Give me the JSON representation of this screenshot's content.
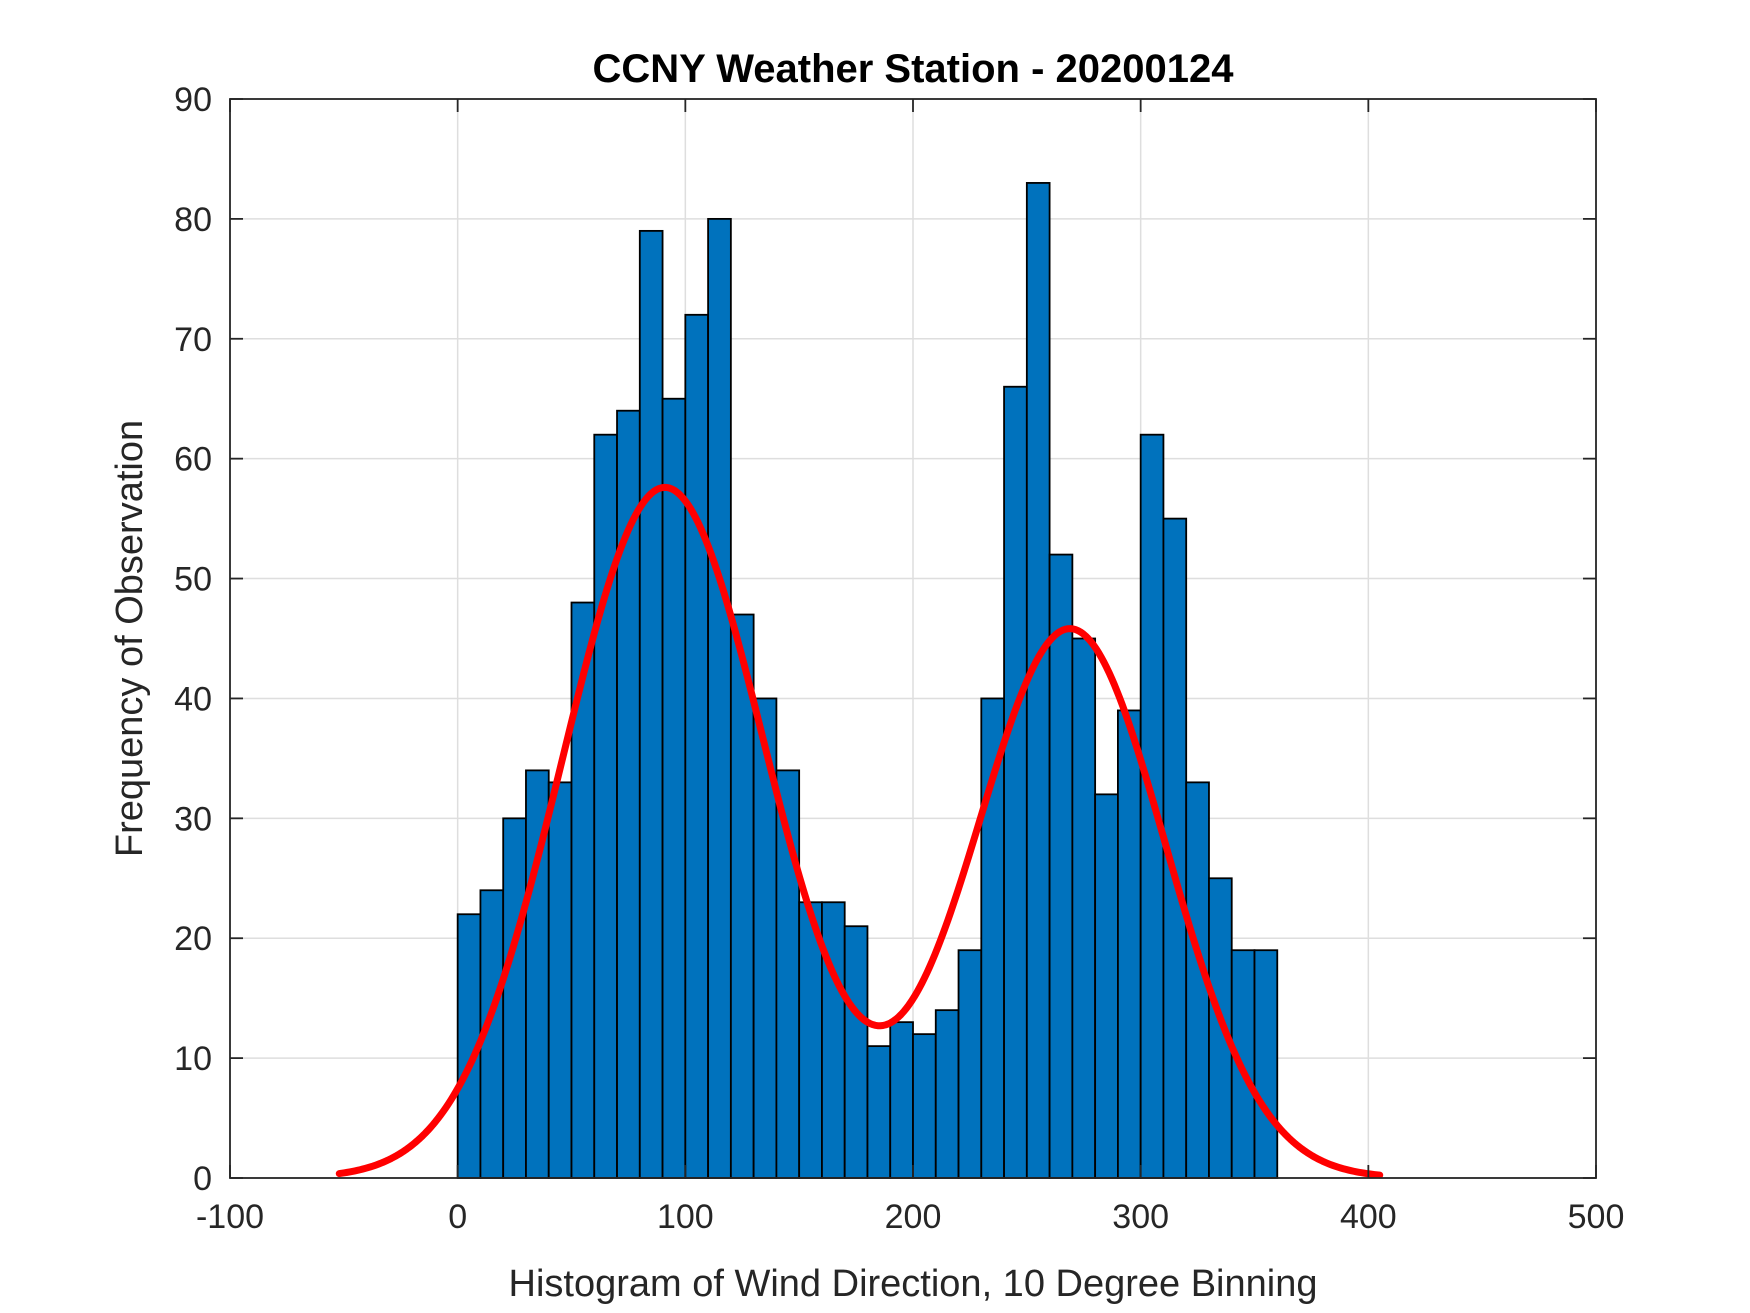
{
  "chart_data": {
    "type": "bar",
    "title": "CCNY Weather Station - 20200124",
    "xlabel": "Histogram of Wind Direction, 10 Degree Binning",
    "ylabel": "Frequency of Observation",
    "xlim": [
      -100,
      500
    ],
    "ylim": [
      0,
      90
    ],
    "xticks": [
      -100,
      0,
      100,
      200,
      300,
      400,
      500
    ],
    "yticks": [
      0,
      10,
      20,
      30,
      40,
      50,
      60,
      70,
      80,
      90
    ],
    "grid": true,
    "bin_width": 10,
    "bin_edges_start": 0,
    "values": [
      22,
      24,
      30,
      34,
      33,
      48,
      62,
      64,
      79,
      65,
      72,
      80,
      47,
      40,
      34,
      23,
      23,
      21,
      11,
      13,
      12,
      14,
      19,
      40,
      66,
      83,
      52,
      45,
      32,
      39,
      62,
      55,
      33,
      25,
      19,
      19
    ],
    "fit_curve": {
      "type": "two-component gaussian mixture",
      "x_range": [
        -52,
        405
      ],
      "components": [
        {
          "amplitude": 57.6,
          "mean": 91,
          "sigma": 45
        },
        {
          "amplitude": 45.8,
          "mean": 269,
          "sigma": 42
        }
      ]
    },
    "colors": {
      "bar_fill": "#0072BD",
      "bar_edge": "#000000",
      "fit_line": "#FF0000",
      "grid": "#DEDEDE",
      "axis": "#262626"
    }
  }
}
